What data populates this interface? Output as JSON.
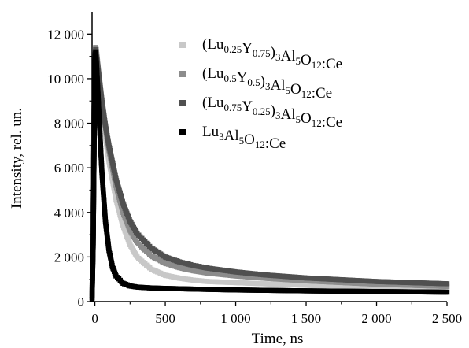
{
  "chart_data": {
    "type": "scatter",
    "xlabel": "Time, ns",
    "ylabel": "Intensity, rel. un.",
    "xlim": [
      -20,
      2500
    ],
    "ylim": [
      0,
      13000
    ],
    "xticks": [
      0,
      500,
      1000,
      1500,
      2000,
      2500
    ],
    "xtick_labels": [
      "0",
      "500",
      "1 000",
      "1 500",
      "2 000",
      "2 500"
    ],
    "yticks": [
      0,
      2000,
      4000,
      6000,
      8000,
      10000,
      12000
    ],
    "ytick_labels": [
      "0",
      "2 000",
      "4 000",
      "6 000",
      "8 000",
      "10 000",
      "12 000"
    ],
    "grid": false,
    "legend_position": "top-right",
    "series": [
      {
        "name": "(Lu0.25Y0.75)3Al5O12:Ce",
        "legend": [
          [
            "(Lu",
            ""
          ],
          [
            "0.25",
            "sub"
          ],
          [
            "Y",
            ""
          ],
          [
            "0.75",
            "sub"
          ],
          [
            ")",
            ""
          ],
          [
            "3",
            "sub"
          ],
          [
            "Al",
            ""
          ],
          [
            "5",
            "sub"
          ],
          [
            "O",
            ""
          ],
          [
            "12",
            "sub"
          ],
          [
            ":Ce",
            ""
          ]
        ],
        "color": "#c8c8c8",
        "x": [
          -20,
          -12,
          -6,
          0,
          5,
          10,
          25,
          50,
          75,
          100,
          150,
          200,
          250,
          300,
          400,
          500,
          600,
          700,
          800,
          1000,
          1200,
          1500,
          2000,
          2500
        ],
        "values": [
          200,
          3000,
          7500,
          10500,
          11300,
          11200,
          10200,
          8700,
          7400,
          6300,
          4600,
          3400,
          2550,
          2000,
          1450,
          1180,
          1050,
          960,
          900,
          850,
          800,
          730,
          620,
          540
        ]
      },
      {
        "name": "(Lu0.5Y0.5)3Al5O12:Ce",
        "legend": [
          [
            "(Lu",
            ""
          ],
          [
            "0.5",
            "sub"
          ],
          [
            "Y",
            ""
          ],
          [
            "0.5",
            "sub"
          ],
          [
            ")",
            ""
          ],
          [
            "3",
            "sub"
          ],
          [
            "Al",
            ""
          ],
          [
            "5",
            "sub"
          ],
          [
            "O",
            ""
          ],
          [
            "12",
            "sub"
          ],
          [
            ":Ce",
            ""
          ]
        ],
        "color": "#8c8c8c",
        "x": [
          -20,
          -12,
          -6,
          0,
          5,
          10,
          25,
          50,
          75,
          100,
          150,
          200,
          250,
          300,
          400,
          500,
          600,
          700,
          800,
          1000,
          1200,
          1500,
          2000,
          2500
        ],
        "values": [
          300,
          3500,
          8000,
          10800,
          11400,
          11300,
          10400,
          9000,
          7800,
          6800,
          5200,
          4000,
          3200,
          2650,
          2050,
          1720,
          1520,
          1380,
          1280,
          1150,
          1050,
          930,
          780,
          680
        ]
      },
      {
        "name": "(Lu0.75Y0.25)3Al5O12:Ce",
        "legend": [
          [
            "(Lu",
            ""
          ],
          [
            "0.75",
            "sub"
          ],
          [
            "Y",
            ""
          ],
          [
            "0.25",
            "sub"
          ],
          [
            ")",
            ""
          ],
          [
            "3",
            "sub"
          ],
          [
            "Al",
            ""
          ],
          [
            "5",
            "sub"
          ],
          [
            "O",
            ""
          ],
          [
            "12",
            "sub"
          ],
          [
            ":Ce",
            ""
          ]
        ],
        "color": "#505050",
        "x": [
          -20,
          -12,
          -6,
          0,
          5,
          10,
          25,
          50,
          75,
          100,
          150,
          200,
          250,
          300,
          400,
          500,
          600,
          700,
          800,
          1000,
          1200,
          1500,
          2000,
          2500
        ],
        "values": [
          400,
          4000,
          8500,
          11000,
          11300,
          11100,
          10300,
          9000,
          7900,
          7000,
          5500,
          4400,
          3600,
          3050,
          2400,
          2000,
          1780,
          1620,
          1500,
          1330,
          1200,
          1060,
          900,
          800
        ]
      },
      {
        "name": "Lu3Al5O12:Ce",
        "legend": [
          [
            "Lu",
            ""
          ],
          [
            "3",
            "sub"
          ],
          [
            "Al",
            ""
          ],
          [
            "5",
            "sub"
          ],
          [
            "O",
            ""
          ],
          [
            "12",
            "sub"
          ],
          [
            ":Ce",
            ""
          ]
        ],
        "color": "#000000",
        "x": [
          -20,
          -12,
          -6,
          0,
          5,
          10,
          20,
          35,
          50,
          75,
          100,
          125,
          150,
          200,
          250,
          300,
          400,
          500,
          700,
          1000,
          1500,
          2000,
          2500
        ],
        "values": [
          100,
          2500,
          6500,
          10600,
          11200,
          10800,
          9600,
          7600,
          5800,
          3600,
          2300,
          1550,
          1150,
          820,
          700,
          650,
          610,
          590,
          560,
          520,
          480,
          450,
          420
        ]
      }
    ]
  }
}
